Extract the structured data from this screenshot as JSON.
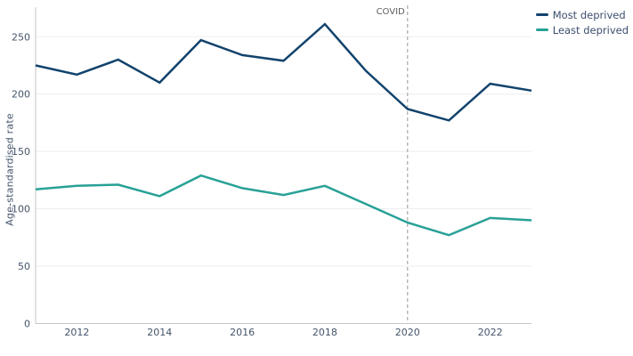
{
  "chart_data": {
    "type": "line",
    "x": [
      2011,
      2012,
      2013,
      2014,
      2015,
      2016,
      2017,
      2018,
      2019,
      2020,
      2021,
      2022,
      2023
    ],
    "series": [
      {
        "name": "Most deprived",
        "color": "#12436D",
        "values": [
          225,
          217,
          230,
          210,
          247,
          234,
          229,
          261,
          220,
          187,
          177,
          209,
          203
        ]
      },
      {
        "name": "Least deprived",
        "color": "#28A197",
        "values": [
          117,
          120,
          121,
          111,
          129,
          118,
          112,
          120,
          104,
          88,
          77,
          92,
          90
        ]
      }
    ],
    "ylabel": "Age-standardised rate",
    "xlabel": "",
    "ylim": [
      0,
      275
    ],
    "yticks": [
      0,
      50,
      100,
      150,
      200,
      250
    ],
    "xticks": [
      2012,
      2014,
      2016,
      2018,
      2020,
      2022
    ],
    "grid": "horizontal",
    "legend_position": "top-right",
    "annotation": {
      "label": "COVID",
      "x": 2020,
      "style": "dashed-vertical-line"
    }
  },
  "colors": {
    "grid": "#EDEDF1",
    "axis": "#C3C6CB",
    "tick_label": "#44546A",
    "annotation_line": "#A9A9A9",
    "annotation_label": "#606060",
    "background": "#FFFFFF"
  }
}
